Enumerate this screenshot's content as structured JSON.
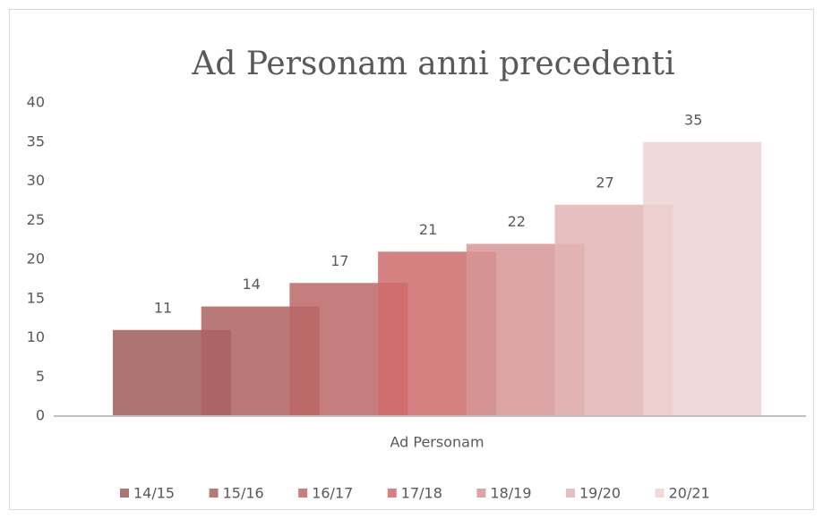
{
  "chart_data": {
    "type": "bar",
    "title": "Ad Personam anni precedenti",
    "categories": [
      "Ad Personam"
    ],
    "series": [
      {
        "name": "14/15",
        "color": "#a05a5a",
        "values": [
          11
        ]
      },
      {
        "name": "15/16",
        "color": "#ad6161",
        "values": [
          14
        ]
      },
      {
        "name": "16/17",
        "color": "#bb6666",
        "values": [
          17
        ]
      },
      {
        "name": "17/18",
        "color": "#cf6b6b",
        "values": [
          21
        ]
      },
      {
        "name": "18/19",
        "color": "#d69696",
        "values": [
          22
        ]
      },
      {
        "name": "19/20",
        "color": "#e2b5b5",
        "values": [
          27
        ]
      },
      {
        "name": "20/21",
        "color": "#ecd2d2",
        "values": [
          35
        ]
      }
    ],
    "ylim": [
      0,
      40
    ],
    "yticks": [
      0,
      5,
      10,
      15,
      20,
      25,
      30,
      35,
      40
    ],
    "grid": false,
    "legend": "bottom"
  }
}
